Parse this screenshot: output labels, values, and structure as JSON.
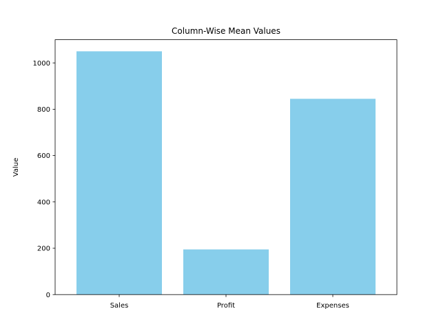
{
  "chart_data": {
    "type": "bar",
    "title": "Column-Wise Mean Values",
    "xlabel": "",
    "ylabel": "Value",
    "categories": [
      "Sales",
      "Profit",
      "Expenses"
    ],
    "values": [
      1050,
      195,
      845
    ],
    "ylim": [
      0,
      1100
    ],
    "yticks": [
      0,
      200,
      400,
      600,
      800,
      1000
    ],
    "ytick_labels": [
      "0",
      "200",
      "400",
      "600",
      "800",
      "1000"
    ],
    "bar_color": "#87ceeb",
    "grid": false,
    "legend": "none"
  }
}
